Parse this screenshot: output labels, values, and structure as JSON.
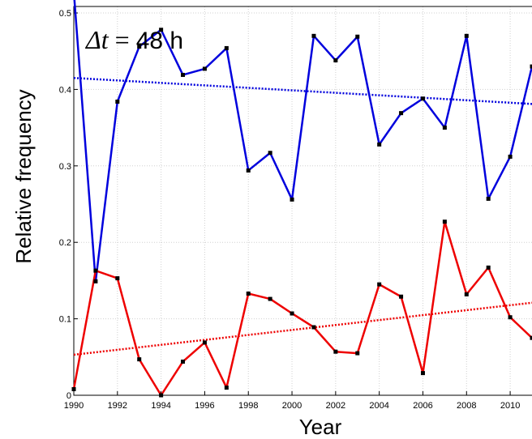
{
  "chart_data": {
    "type": "line",
    "title": "",
    "annotation": {
      "symbol": "Δt",
      "equals": " = ",
      "value": "48 h"
    },
    "xlabel": "Year",
    "ylabel": "Relative frequency",
    "xlim": [
      1990,
      2011
    ],
    "ylim": [
      0,
      0.5
    ],
    "grid": true,
    "x_ticks": [
      "1990",
      "1992",
      "1994",
      "1996",
      "1998",
      "2000",
      "2002",
      "2004",
      "2006",
      "2008",
      "2010"
    ],
    "y_ticks": [
      "0",
      "0.1",
      "0.2",
      "0.3",
      "0.4",
      "0.5"
    ],
    "x": [
      1990,
      1991,
      1992,
      1993,
      1994,
      1995,
      1996,
      1997,
      1998,
      1999,
      2000,
      2001,
      2002,
      2003,
      2004,
      2005,
      2006,
      2007,
      2008,
      2009,
      2010,
      2011
    ],
    "series": [
      {
        "color": "#0000dd",
        "values": [
          0.528,
          0.149,
          0.384,
          0.456,
          0.478,
          0.419,
          0.427,
          0.454,
          0.294,
          0.317,
          0.256,
          0.47,
          0.438,
          0.469,
          0.328,
          0.369,
          0.388,
          0.35,
          0.47,
          0.257,
          0.312,
          0.43
        ]
      },
      {
        "color": "#ee0000",
        "values": [
          0.008,
          0.163,
          0.153,
          0.047,
          0.0,
          0.044,
          0.069,
          0.01,
          0.133,
          0.126,
          0.107,
          0.089,
          0.057,
          0.055,
          0.145,
          0.129,
          0.029,
          0.227,
          0.132,
          0.167,
          0.102,
          0.075
        ]
      }
    ],
    "trendlines": [
      {
        "color": "#0000dd",
        "style": "dotted",
        "start": [
          1990,
          0.415
        ],
        "end": [
          2011,
          0.381
        ]
      },
      {
        "color": "#ee0000",
        "style": "dotted",
        "start": [
          1990,
          0.053
        ],
        "end": [
          2011,
          0.121
        ]
      }
    ]
  }
}
